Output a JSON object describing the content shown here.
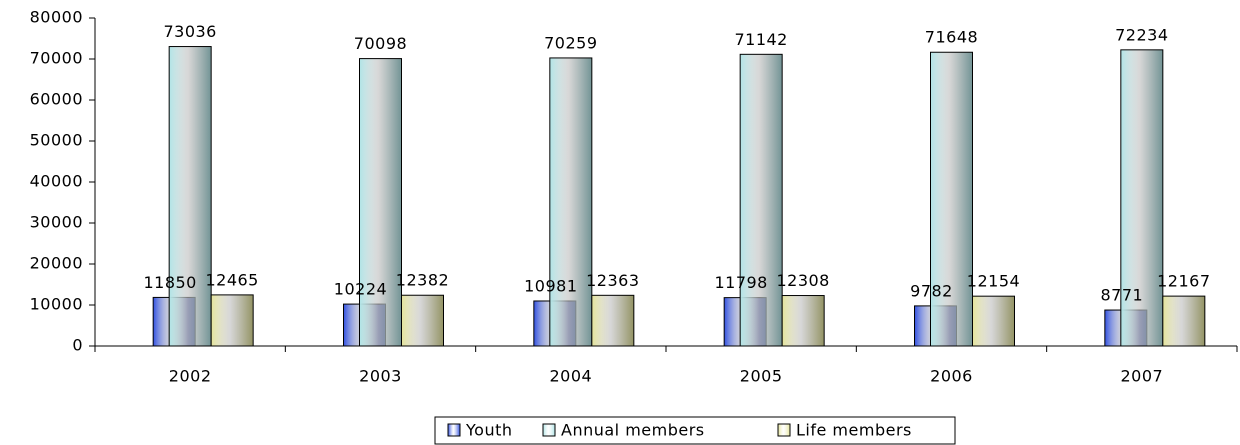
{
  "chart_data": {
    "type": "bar",
    "categories": [
      "2002",
      "2003",
      "2004",
      "2005",
      "2006",
      "2007"
    ],
    "series": [
      {
        "name": "Youth",
        "color": "#3050e0",
        "values": [
          11850,
          10224,
          10981,
          11798,
          9782,
          8771
        ]
      },
      {
        "name": "Annual members",
        "color": "#b0e4e6",
        "values": [
          73036,
          70098,
          70259,
          71142,
          71648,
          72234
        ]
      },
      {
        "name": "Life members",
        "color": "#e4e49a",
        "values": [
          12465,
          12382,
          12363,
          12308,
          12154,
          12167
        ]
      }
    ],
    "ylim": [
      0,
      80000
    ],
    "yticks": [
      0,
      10000,
      20000,
      30000,
      40000,
      50000,
      60000,
      70000,
      80000
    ],
    "legend": "bottom"
  }
}
